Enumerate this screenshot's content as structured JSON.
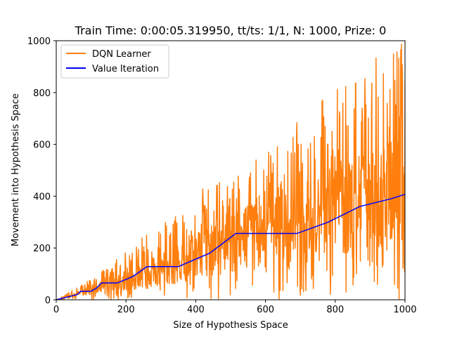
{
  "chart_data": {
    "type": "line",
    "title": "Train Time: 0:00:05.319950, tt/ts: 1/1, N: 1000, Prize: 0",
    "xlabel": "Size of Hypothesis Space",
    "ylabel": "Movement into Hypothesis Space",
    "xlim": [
      0,
      1000
    ],
    "ylim": [
      0,
      1000
    ],
    "xticks": [
      "0",
      "200",
      "400",
      "600",
      "800",
      "1000"
    ],
    "yticks": [
      "0",
      "200",
      "400",
      "600",
      "800",
      "1000"
    ],
    "grid": false,
    "legend": "top-left",
    "series": [
      {
        "name": "DQN Learner",
        "color": "#ff7f0e",
        "style": "noisy",
        "x": [
          0,
          50,
          100,
          150,
          200,
          250,
          300,
          350,
          400,
          450,
          500,
          550,
          600,
          650,
          700,
          750,
          800,
          850,
          900,
          950,
          1000
        ],
        "upper_envelope": [
          0,
          40,
          85,
          130,
          190,
          250,
          290,
          330,
          420,
          450,
          470,
          530,
          560,
          620,
          700,
          760,
          820,
          870,
          910,
          980,
          990
        ],
        "typical": [
          0,
          15,
          35,
          55,
          70,
          90,
          110,
          130,
          160,
          180,
          200,
          230,
          240,
          260,
          280,
          300,
          330,
          350,
          380,
          400,
          420
        ]
      },
      {
        "name": "Value Iteration",
        "color": "#0000ff",
        "x": [
          0,
          30,
          60,
          70,
          100,
          115,
          130,
          175,
          220,
          260,
          350,
          440,
          515,
          690,
          780,
          870,
          960,
          1000
        ],
        "y": [
          0,
          10,
          20,
          33,
          33,
          45,
          65,
          65,
          90,
          128,
          128,
          180,
          256,
          256,
          300,
          360,
          390,
          407
        ]
      }
    ]
  }
}
